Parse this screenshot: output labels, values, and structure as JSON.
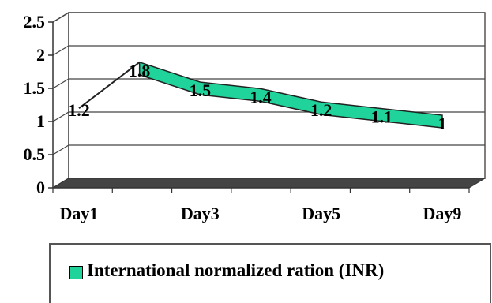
{
  "chart_data": {
    "type": "area",
    "categories": [
      "Day1",
      "",
      "Day3",
      "",
      "Day5",
      "",
      "Day9"
    ],
    "x_tick_labels": [
      "Day1",
      "Day3",
      "Day5",
      "Day9"
    ],
    "series": [
      {
        "name": "International normalized ration (INR)",
        "values": [
          1.2,
          1.8,
          1.5,
          1.4,
          1.2,
          1.1,
          1.0
        ],
        "color": "#1fd39a"
      }
    ],
    "data_labels": [
      "1.2",
      "1.8",
      "1.5",
      "1.4",
      "1.2",
      "1.1",
      "1"
    ],
    "y_tick_labels": [
      "0",
      "0.5",
      "1",
      "1.5",
      "2",
      "2.5"
    ],
    "ylim": [
      0,
      2.5
    ],
    "grid": true,
    "legend_position": "bottom",
    "title": "",
    "xlabel": "",
    "ylabel": ""
  },
  "legend": {
    "label": "International normalized ration (INR)"
  }
}
